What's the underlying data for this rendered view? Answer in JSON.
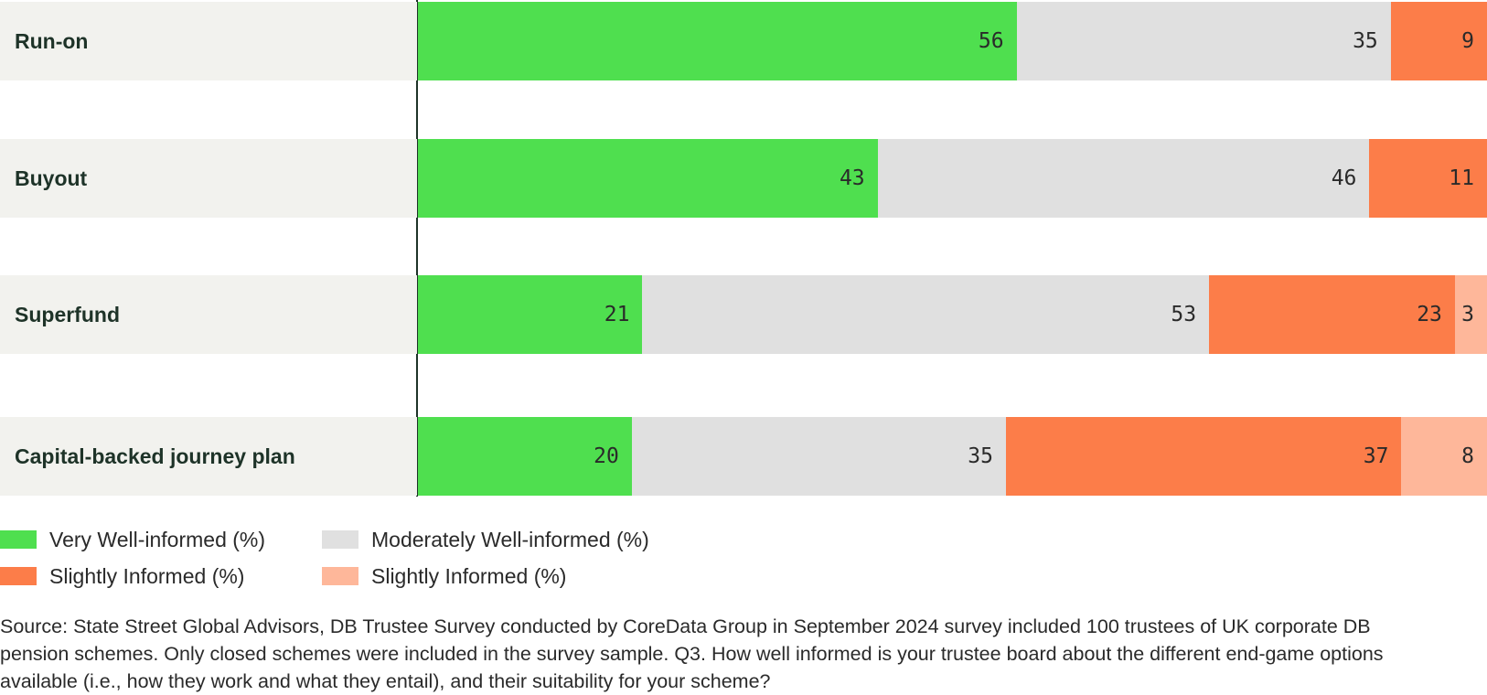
{
  "chart_data": {
    "type": "bar",
    "orientation": "horizontal",
    "stacked": true,
    "categories": [
      "Run-on",
      "Buyout",
      "Superfund",
      "Capital-backed journey plan"
    ],
    "series": [
      {
        "name": "Very Well-informed (%)",
        "color": "#4fdf4f",
        "values": [
          56,
          43,
          21,
          20
        ],
        "labels": [
          "56",
          "43",
          "21",
          "20"
        ]
      },
      {
        "name": "Moderately Well-informed (%)",
        "color": "#e0e0e0",
        "values": [
          35,
          46,
          53,
          35
        ],
        "labels": [
          "35",
          "46",
          "53",
          "35"
        ]
      },
      {
        "name": "Slightly Informed (%)",
        "color": "#fc7d49",
        "values": [
          9,
          11,
          23,
          37
        ],
        "labels": [
          "9",
          "11",
          "23",
          "37"
        ]
      },
      {
        "name": "Slightly Informed (%)",
        "color": "#feb79a",
        "values": [
          0,
          0,
          3,
          8
        ],
        "labels": [
          "",
          "",
          "3",
          "8"
        ]
      }
    ],
    "xlim": [
      0,
      100
    ],
    "legend_position": "bottom-left"
  },
  "source_note": "Source: State Street Global Advisors, DB Trustee Survey conducted by CoreData Group in September 2024 survey included 100 trustees of UK corporate DB pension schemes. Only closed schemes were included in the survey sample. Q3. How well informed is your trustee board about the different end-game options available (i.e., how they work and what they entail), and their suitability for your scheme?"
}
